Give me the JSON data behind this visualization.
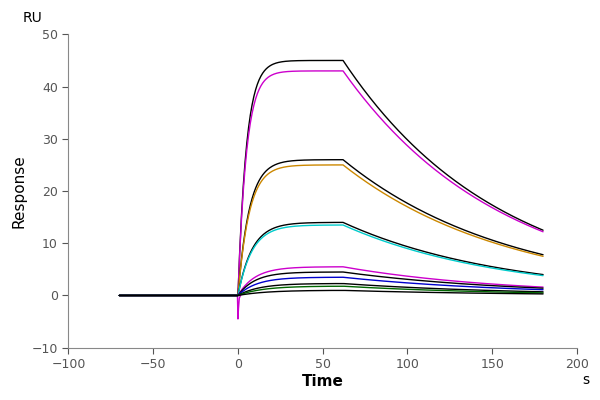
{
  "title": "",
  "xlabel": "Time",
  "ylabel": "Response",
  "x_unit": "s",
  "y_unit": "RU",
  "xlim": [
    -100,
    200
  ],
  "ylim": [
    -10,
    50
  ],
  "xticks": [
    -100,
    -50,
    0,
    50,
    100,
    150,
    200
  ],
  "yticks": [
    -10,
    0,
    10,
    20,
    30,
    40,
    50
  ],
  "association_start": 0,
  "association_end": 62,
  "dissociation_end": 180,
  "baseline_start": -70,
  "curves": [
    {
      "color": "#000000",
      "peak": 45.0,
      "diss_start": 45.0,
      "diss_end": 12.5,
      "assoc_ka": 0.2,
      "diss_kd": 0.0095,
      "has_spike": false
    },
    {
      "color": "#cc00cc",
      "peak": 43.0,
      "diss_start": 43.0,
      "diss_end": 12.2,
      "assoc_ka": 0.2,
      "diss_kd": 0.0095,
      "has_spike": true
    },
    {
      "color": "#000000",
      "peak": 26.0,
      "diss_start": 26.0,
      "diss_end": 7.8,
      "assoc_ka": 0.15,
      "diss_kd": 0.009,
      "has_spike": false
    },
    {
      "color": "#cc8800",
      "peak": 25.0,
      "diss_start": 25.0,
      "diss_end": 7.5,
      "assoc_ka": 0.15,
      "diss_kd": 0.009,
      "has_spike": false
    },
    {
      "color": "#000000",
      "peak": 14.0,
      "diss_start": 14.0,
      "diss_end": 4.0,
      "assoc_ka": 0.12,
      "diss_kd": 0.0085,
      "has_spike": false
    },
    {
      "color": "#00cccc",
      "peak": 13.5,
      "diss_start": 13.5,
      "diss_end": 3.8,
      "assoc_ka": 0.12,
      "diss_kd": 0.0085,
      "has_spike": false
    },
    {
      "color": "#cc00cc",
      "peak": 5.5,
      "diss_start": 5.5,
      "diss_end": 1.6,
      "assoc_ka": 0.1,
      "diss_kd": 0.008,
      "has_spike": false
    },
    {
      "color": "#000000",
      "peak": 4.5,
      "diss_start": 4.5,
      "diss_end": 1.4,
      "assoc_ka": 0.1,
      "diss_kd": 0.008,
      "has_spike": false
    },
    {
      "color": "#0000cc",
      "peak": 3.5,
      "diss_start": 3.5,
      "diss_end": 1.1,
      "assoc_ka": 0.09,
      "diss_kd": 0.008,
      "has_spike": false
    },
    {
      "color": "#000000",
      "peak": 2.3,
      "diss_start": 2.3,
      "diss_end": 0.7,
      "assoc_ka": 0.08,
      "diss_kd": 0.007,
      "has_spike": false
    },
    {
      "color": "#006600",
      "peak": 1.8,
      "diss_start": 1.8,
      "diss_end": 0.5,
      "assoc_ka": 0.07,
      "diss_kd": 0.007,
      "has_spike": false
    },
    {
      "color": "#000000",
      "peak": 1.0,
      "diss_start": 1.0,
      "diss_end": 0.3,
      "assoc_ka": 0.06,
      "diss_kd": 0.006,
      "has_spike": false
    }
  ],
  "background_color": "#ffffff",
  "linewidth": 1.0
}
